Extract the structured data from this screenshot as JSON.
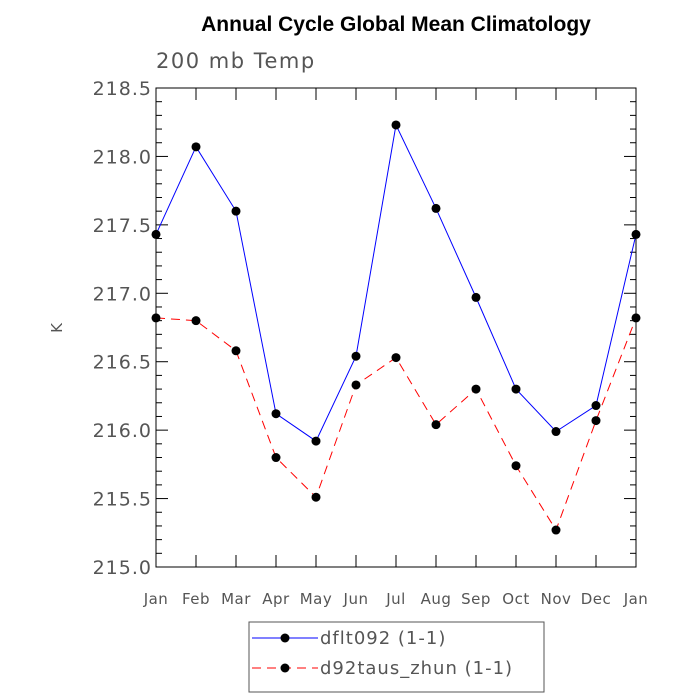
{
  "chart_data": {
    "type": "line",
    "title": "Annual Cycle Global Mean Climatology",
    "subtitle": "200 mb Temp",
    "ylabel": "K",
    "xlabel": "",
    "categories": [
      "Jan",
      "Feb",
      "Mar",
      "Apr",
      "May",
      "Jun",
      "Jul",
      "Aug",
      "Sep",
      "Oct",
      "Nov",
      "Dec",
      "Jan"
    ],
    "ylim": [
      215.0,
      218.5
    ],
    "yticks": [
      "215.0",
      "215.5",
      "216.0",
      "216.5",
      "217.0",
      "217.5",
      "218.0",
      "218.5"
    ],
    "legend_position": "bottom-center",
    "grid": false,
    "series": [
      {
        "name": "dflt092 (1-1)",
        "color": "#0000ff",
        "line_style": "solid",
        "values": [
          217.43,
          218.07,
          217.6,
          216.12,
          215.92,
          216.54,
          218.23,
          217.62,
          216.97,
          216.3,
          215.99,
          216.18,
          217.43
        ]
      },
      {
        "name": "d92taus_zhun (1-1)",
        "color": "#ff0000",
        "line_style": "dashed",
        "values": [
          216.82,
          216.8,
          216.58,
          215.8,
          215.51,
          216.33,
          216.53,
          216.04,
          216.3,
          215.74,
          215.27,
          216.07,
          216.82
        ]
      }
    ]
  }
}
